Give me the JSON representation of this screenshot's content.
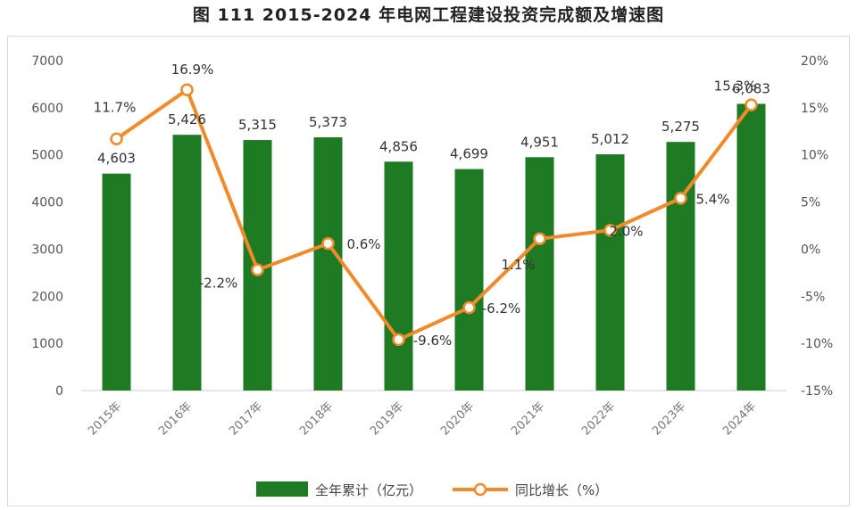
{
  "figure": {
    "title": "图 111 2015-2024 年电网工程建设投资完成额及增速图"
  },
  "colors": {
    "bar": "#1e7b23",
    "line": "#f08a2a",
    "axis": "#cccccc"
  },
  "chart_data": {
    "type": "bar",
    "title": "图 111 2015-2024 年电网工程建设投资完成额及增速图",
    "categories": [
      "2015年",
      "2016年",
      "2017年",
      "2018年",
      "2019年",
      "2020年",
      "2021年",
      "2022年",
      "2023年",
      "2024年"
    ],
    "ylim": [
      0,
      7000
    ],
    "yticks": [
      "0",
      "1000",
      "2000",
      "3000",
      "4000",
      "5000",
      "6000",
      "7000"
    ],
    "y2lim": [
      -15,
      20
    ],
    "y2ticks": [
      "-15%",
      "-10%",
      "-5%",
      "0%",
      "5%",
      "10%",
      "15%",
      "20%"
    ],
    "legend_position": "bottom",
    "series": [
      {
        "name": "全年累计（亿元）",
        "type": "bar",
        "axis": "left",
        "values": [
          4603,
          5426,
          5315,
          5373,
          4856,
          4699,
          4951,
          5012,
          5275,
          6083
        ],
        "labels": [
          "4,603",
          "5,426",
          "5,315",
          "5,373",
          "4,856",
          "4,699",
          "4,951",
          "5,012",
          "5,275",
          "6,083"
        ]
      },
      {
        "name": "同比增长（%）",
        "type": "line",
        "axis": "right",
        "values": [
          11.7,
          16.9,
          -2.2,
          0.6,
          -9.6,
          -6.2,
          1.1,
          2.0,
          5.4,
          15.3
        ],
        "labels": [
          "11.7%",
          "16.9%",
          "-2.2%",
          "0.6%",
          "-9.6%",
          "-6.2%",
          "1.1%",
          "2.0%",
          "5.4%",
          "15.3%"
        ]
      }
    ]
  }
}
